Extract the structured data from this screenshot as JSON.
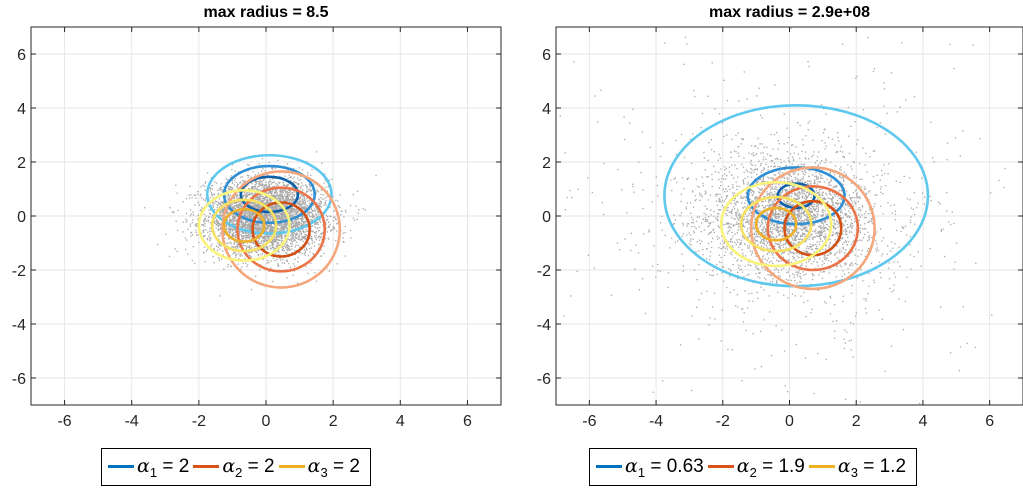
{
  "chart_data": [
    {
      "type": "scatter",
      "title": "max radius = 8.5",
      "xlabel": "",
      "ylabel": "",
      "xlim": [
        -7,
        7
      ],
      "ylim": [
        -7,
        7
      ],
      "xticks": [
        -6,
        -4,
        -2,
        0,
        2,
        4,
        6
      ],
      "yticks": [
        -6,
        -4,
        -2,
        0,
        2,
        4,
        6
      ],
      "grid": true,
      "scatter": {
        "color": "#a8a8a8",
        "count": 4500,
        "spread_x": 0.9,
        "spread_y": 0.7
      },
      "ellipses": [
        {
          "series": 0,
          "cx": 0.1,
          "cy": 0.8,
          "rx": 1.85,
          "ry": 1.45
        },
        {
          "series": 0,
          "cx": 0.1,
          "cy": 0.8,
          "rx": 1.35,
          "ry": 1.05
        },
        {
          "series": 0,
          "cx": 0.1,
          "cy": 0.8,
          "rx": 0.85,
          "ry": 0.65
        },
        {
          "series": 1,
          "cx": 0.45,
          "cy": -0.5,
          "rx": 1.75,
          "ry": 2.15
        },
        {
          "series": 1,
          "cx": 0.45,
          "cy": -0.5,
          "rx": 1.3,
          "ry": 1.55
        },
        {
          "series": 1,
          "cx": 0.45,
          "cy": -0.5,
          "rx": 0.85,
          "ry": 1.0
        },
        {
          "series": 2,
          "cx": -0.65,
          "cy": -0.35,
          "rx": 1.35,
          "ry": 1.3
        },
        {
          "series": 2,
          "cx": -0.65,
          "cy": -0.35,
          "rx": 0.95,
          "ry": 0.95
        },
        {
          "series": 2,
          "cx": -0.65,
          "cy": -0.35,
          "rx": 0.6,
          "ry": 0.6
        }
      ],
      "legend": {
        "placement": "bottom",
        "entries": [
          {
            "sub": "1",
            "value": " = 2"
          },
          {
            "sub": "2",
            "value": " = 2"
          },
          {
            "sub": "3",
            "value": " = 2"
          }
        ]
      }
    },
    {
      "type": "scatter",
      "title": "max radius = 2.9e+08",
      "xlabel": "",
      "ylabel": "",
      "xlim": [
        -7,
        7
      ],
      "ylim": [
        -7,
        7
      ],
      "xticks": [
        -6,
        -4,
        -2,
        0,
        2,
        4,
        6
      ],
      "yticks": [
        -6,
        -4,
        -2,
        0,
        2,
        4,
        6
      ],
      "grid": true,
      "scatter": {
        "color": "#a8a8a8",
        "count": 3500,
        "spread_x": 0.9,
        "spread_y": 0.8,
        "heavy_tail": true
      },
      "ellipses": [
        {
          "series": 0,
          "cx": 0.2,
          "cy": 0.75,
          "rx": 3.95,
          "ry": 3.35
        },
        {
          "series": 0,
          "cx": 0.2,
          "cy": 0.75,
          "rx": 1.45,
          "ry": 1.05
        },
        {
          "series": 0,
          "cx": 0.2,
          "cy": 0.75,
          "rx": 0.55,
          "ry": 0.45
        },
        {
          "series": 1,
          "cx": 0.7,
          "cy": -0.45,
          "rx": 1.85,
          "ry": 2.25
        },
        {
          "series": 1,
          "cx": 0.7,
          "cy": -0.45,
          "rx": 1.35,
          "ry": 1.55
        },
        {
          "series": 1,
          "cx": 0.7,
          "cy": -0.45,
          "rx": 0.85,
          "ry": 1.0
        },
        {
          "series": 2,
          "cx": -0.4,
          "cy": -0.3,
          "rx": 1.65,
          "ry": 1.55
        },
        {
          "series": 2,
          "cx": -0.4,
          "cy": -0.3,
          "rx": 1.05,
          "ry": 1.0
        },
        {
          "series": 2,
          "cx": -0.4,
          "cy": -0.3,
          "rx": 0.6,
          "ry": 0.6
        }
      ],
      "legend": {
        "placement": "bottom",
        "entries": [
          {
            "sub": "1",
            "value": " = 0.63"
          },
          {
            "sub": "2",
            "value": " = 1.9"
          },
          {
            "sub": "3",
            "value": " = 1.2"
          }
        ]
      }
    }
  ],
  "series_palettes": [
    [
      "#5ec8ee",
      "#2f8fd4",
      "#0c60a8"
    ],
    [
      "#f4a67c",
      "#ea7447",
      "#d34f12"
    ],
    [
      "#faf37a",
      "#f6e260",
      "#edb12a"
    ]
  ],
  "legend_colors": [
    "#0072bd",
    "#d95319",
    "#edb120"
  ],
  "legend_symbol": "α"
}
